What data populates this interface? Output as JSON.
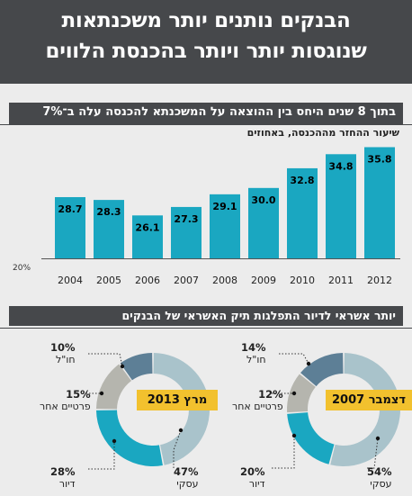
{
  "title": {
    "line1": "הבנקים נותנים יותר משכנתאות",
    "line2": "שנוגסות יותר ויותר בהכנסת הלווים"
  },
  "bar_section": {
    "heading": "בתוך 8 שנים היחס בין ההוצאה על המשכנתא להכנסה עלה ב־7%",
    "subtitle": "שיעור ההחזר מההכנסה, באחוזים",
    "y_base_label": "20%"
  },
  "pie_section": {
    "heading": "יותר אשראי לדיור התפלגות תיק האשראי של הבנקים"
  },
  "colors": {
    "bar": "#1aa7c1",
    "business": "#a9c3cb",
    "housing": "#1aa7c1",
    "private": "#b5b5ae",
    "abroad": "#5d7f96",
    "badge": "#f2c12e",
    "dark": "#46484b"
  },
  "chart_data": [
    {
      "type": "bar",
      "title": "בתוך 8 שנים היחס בין ההוצאה על המשכנתא להכנסה עלה ב־7%",
      "ylabel": "שיעור ההחזר מההכנסה, באחוזים",
      "categories": [
        "2004",
        "2005",
        "2006",
        "2007",
        "2008",
        "2009",
        "2010",
        "2011",
        "2012"
      ],
      "values": [
        28.7,
        28.3,
        26.1,
        27.3,
        29.1,
        30.0,
        32.8,
        34.8,
        35.8
      ],
      "value_labels": [
        "28.7",
        "28.3",
        "26.1",
        "27.3",
        "29.1",
        "30.0",
        "32.8",
        "34.8",
        "35.8"
      ],
      "ylim": [
        20,
        36.5
      ],
      "grid": false
    },
    {
      "type": "pie",
      "title": "מרץ 2013",
      "slices": [
        {
          "label": "עסקי",
          "pct_label": "47%",
          "value": 47,
          "color_key": "business"
        },
        {
          "label": "דיור",
          "pct_label": "28%",
          "value": 28,
          "color_key": "housing"
        },
        {
          "label": "פרטיים אחר",
          "pct_label": "15%",
          "value": 15,
          "color_key": "private"
        },
        {
          "label": "חו\"ל",
          "pct_label": "10%",
          "value": 10,
          "color_key": "abroad"
        }
      ]
    },
    {
      "type": "pie",
      "title": "דצמבר 2007",
      "slices": [
        {
          "label": "עסקי",
          "pct_label": "54%",
          "value": 54,
          "color_key": "business"
        },
        {
          "label": "דיור",
          "pct_label": "20%",
          "value": 20,
          "color_key": "housing"
        },
        {
          "label": "פרטיים אחר",
          "pct_label": "12%",
          "value": 12,
          "color_key": "private"
        },
        {
          "label": "חו\"ל",
          "pct_label": "14%",
          "value": 14,
          "color_key": "abroad"
        }
      ]
    }
  ]
}
